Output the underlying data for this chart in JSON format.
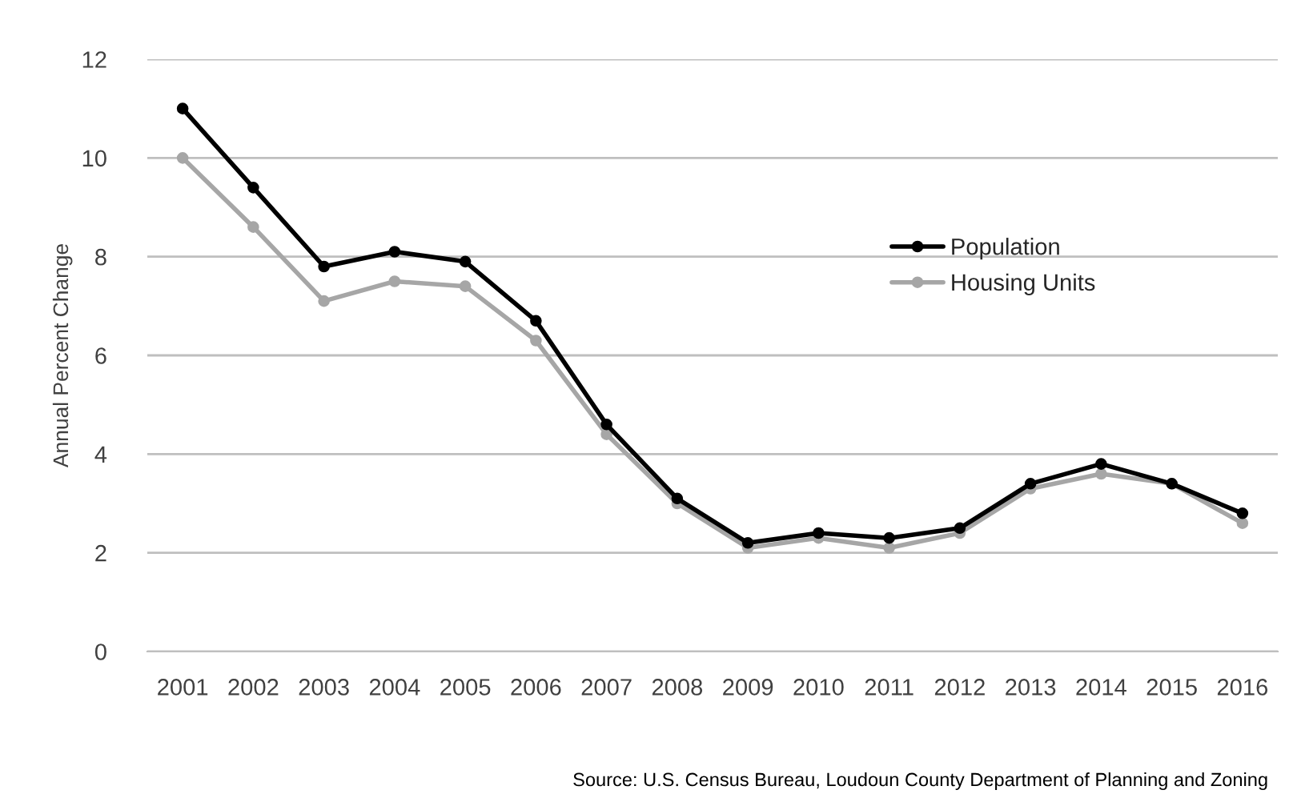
{
  "chart_data": {
    "type": "line",
    "ylabel": "Annual Percent Change",
    "categories": [
      "2001",
      "2002",
      "2003",
      "2004",
      "2005",
      "2006",
      "2007",
      "2008",
      "2009",
      "2010",
      "2011",
      "2012",
      "2013",
      "2014",
      "2015",
      "2016"
    ],
    "series": [
      {
        "name": "Population",
        "color": "#000000",
        "values": [
          11.0,
          9.4,
          7.8,
          8.1,
          7.9,
          6.7,
          4.6,
          3.1,
          2.2,
          2.4,
          2.3,
          2.5,
          3.4,
          3.8,
          3.4,
          2.8
        ]
      },
      {
        "name": "Housing Units",
        "color": "#a6a6a6",
        "values": [
          10.0,
          8.6,
          7.1,
          7.5,
          7.4,
          6.3,
          4.4,
          3.0,
          2.1,
          2.3,
          2.1,
          2.4,
          3.3,
          3.6,
          3.4,
          2.6
        ]
      }
    ],
    "ylim": [
      0,
      12
    ],
    "yticks": [
      0,
      2,
      4,
      6,
      8,
      10,
      12
    ],
    "grid": "y",
    "legend": "right",
    "marker": "circle",
    "line_style": "solid",
    "annotations": [
      "Source: U.S. Census Bureau, Loudoun County Department of Planning and Zoning"
    ]
  }
}
